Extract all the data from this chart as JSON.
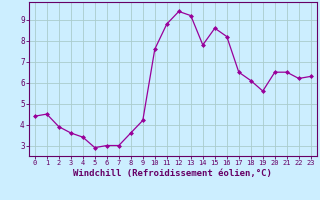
{
  "x": [
    0,
    1,
    2,
    3,
    4,
    5,
    6,
    7,
    8,
    9,
    10,
    11,
    12,
    13,
    14,
    15,
    16,
    17,
    18,
    19,
    20,
    21,
    22,
    23
  ],
  "y": [
    4.4,
    4.5,
    3.9,
    3.6,
    3.4,
    2.9,
    3.0,
    3.0,
    3.6,
    4.2,
    7.6,
    8.8,
    9.4,
    9.2,
    7.8,
    8.6,
    8.2,
    6.5,
    6.1,
    5.6,
    6.5,
    6.5,
    6.2,
    6.3
  ],
  "line_color": "#990099",
  "marker": "D",
  "marker_size": 2.0,
  "bg_color": "#cceeff",
  "grid_color": "#aacccc",
  "axis_color": "#660066",
  "tick_color": "#660066",
  "xlabel": "Windchill (Refroidissement éolien,°C)",
  "xlabel_fontsize": 6.5,
  "ylabel_ticks": [
    3,
    4,
    5,
    6,
    7,
    8,
    9
  ],
  "xlim": [
    -0.5,
    23.5
  ],
  "ylim": [
    2.5,
    9.85
  ]
}
